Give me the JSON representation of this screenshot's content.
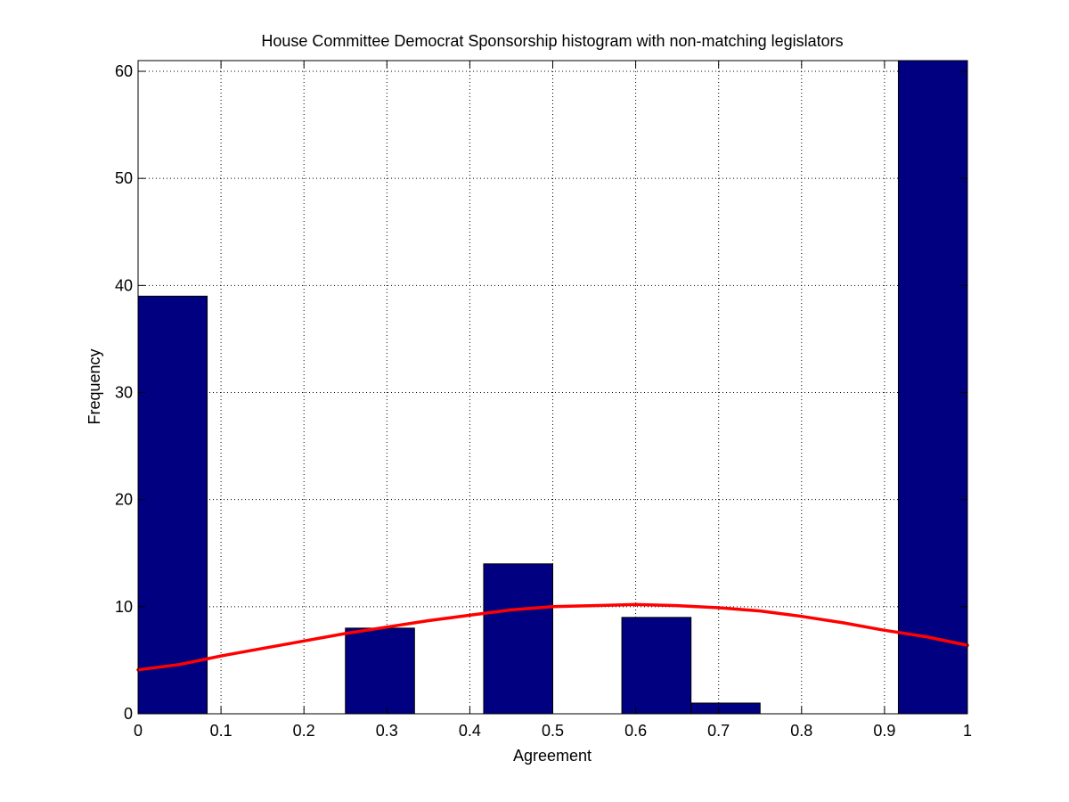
{
  "chart_data": {
    "type": "bar",
    "title": "House Committee Democrat Sponsorship histogram with non-matching legislators",
    "xlabel": "Agreement",
    "ylabel": "Frequency",
    "xlim": [
      0,
      1
    ],
    "ylim": [
      0,
      61
    ],
    "xticks": [
      0,
      0.1,
      0.2,
      0.3,
      0.4,
      0.5,
      0.6,
      0.7,
      0.8,
      0.9,
      1
    ],
    "xtick_labels": [
      "0",
      "0.1",
      "0.2",
      "0.3",
      "0.4",
      "0.5",
      "0.6",
      "0.7",
      "0.8",
      "0.9",
      "1"
    ],
    "yticks": [
      0,
      10,
      20,
      30,
      40,
      50,
      60
    ],
    "ytick_labels": [
      "0",
      "10",
      "20",
      "30",
      "40",
      "50",
      "60"
    ],
    "grid": true,
    "bins": [
      {
        "x0": 0,
        "x1": 0.0833,
        "count": 39
      },
      {
        "x0": 0.0833,
        "x1": 0.1667,
        "count": 0
      },
      {
        "x0": 0.1667,
        "x1": 0.25,
        "count": 0
      },
      {
        "x0": 0.25,
        "x1": 0.3333,
        "count": 8
      },
      {
        "x0": 0.3333,
        "x1": 0.4167,
        "count": 0
      },
      {
        "x0": 0.4167,
        "x1": 0.5,
        "count": 14
      },
      {
        "x0": 0.5,
        "x1": 0.5833,
        "count": 0
      },
      {
        "x0": 0.5833,
        "x1": 0.6667,
        "count": 9
      },
      {
        "x0": 0.6667,
        "x1": 0.75,
        "count": 1
      },
      {
        "x0": 0.75,
        "x1": 0.8333,
        "count": 0
      },
      {
        "x0": 0.8333,
        "x1": 0.9167,
        "count": 0
      },
      {
        "x0": 0.9167,
        "x1": 1,
        "count": 61
      }
    ],
    "fit_curve": {
      "x": [
        0,
        0.05,
        0.1,
        0.15,
        0.2,
        0.25,
        0.3,
        0.35,
        0.4,
        0.45,
        0.5,
        0.55,
        0.6,
        0.65,
        0.7,
        0.75,
        0.8,
        0.85,
        0.9,
        0.95,
        1
      ],
      "y": [
        4.1,
        4.6,
        5.4,
        6.1,
        6.8,
        7.5,
        8.1,
        8.7,
        9.2,
        9.7,
        10.0,
        10.1,
        10.2,
        10.1,
        9.9,
        9.6,
        9.1,
        8.5,
        7.8,
        7.2,
        6.4
      ]
    },
    "colors": {
      "bar_fill": "#000080",
      "bar_edge": "#000000",
      "curve": "#ff0000",
      "grid": "#000000",
      "axis": "#000000"
    }
  }
}
